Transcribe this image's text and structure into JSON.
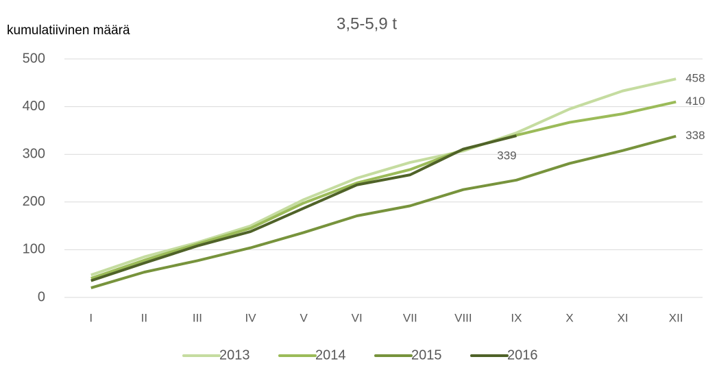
{
  "chart_data": {
    "type": "line",
    "title": "3,5-5,9 t",
    "y_label": "kumulatiivinen määrä",
    "categories": [
      "I",
      "II",
      "III",
      "IV",
      "V",
      "VI",
      "VII",
      "VIII",
      "IX",
      "X",
      "XI",
      "XII"
    ],
    "series": [
      {
        "name": "2013",
        "color": "#c5dca0",
        "values": [
          47,
          85,
          115,
          150,
          205,
          250,
          283,
          307,
          345,
          395,
          433,
          458
        ]
      },
      {
        "name": "2014",
        "color": "#9bbb59",
        "values": [
          40,
          78,
          112,
          145,
          198,
          240,
          268,
          310,
          340,
          367,
          385,
          410
        ]
      },
      {
        "name": "2015",
        "color": "#77933c",
        "values": [
          20,
          53,
          77,
          104,
          136,
          171,
          192,
          226,
          246,
          281,
          308,
          338
        ]
      },
      {
        "name": "2016",
        "color": "#4f6228",
        "values": [
          35,
          72,
          108,
          138,
          187,
          236,
          257,
          311,
          339,
          null,
          null,
          null
        ]
      }
    ],
    "ylim": [
      0,
      500
    ],
    "yticks": [
      0,
      100,
      200,
      300,
      400,
      500
    ],
    "grid": true,
    "legend": "bottom"
  }
}
